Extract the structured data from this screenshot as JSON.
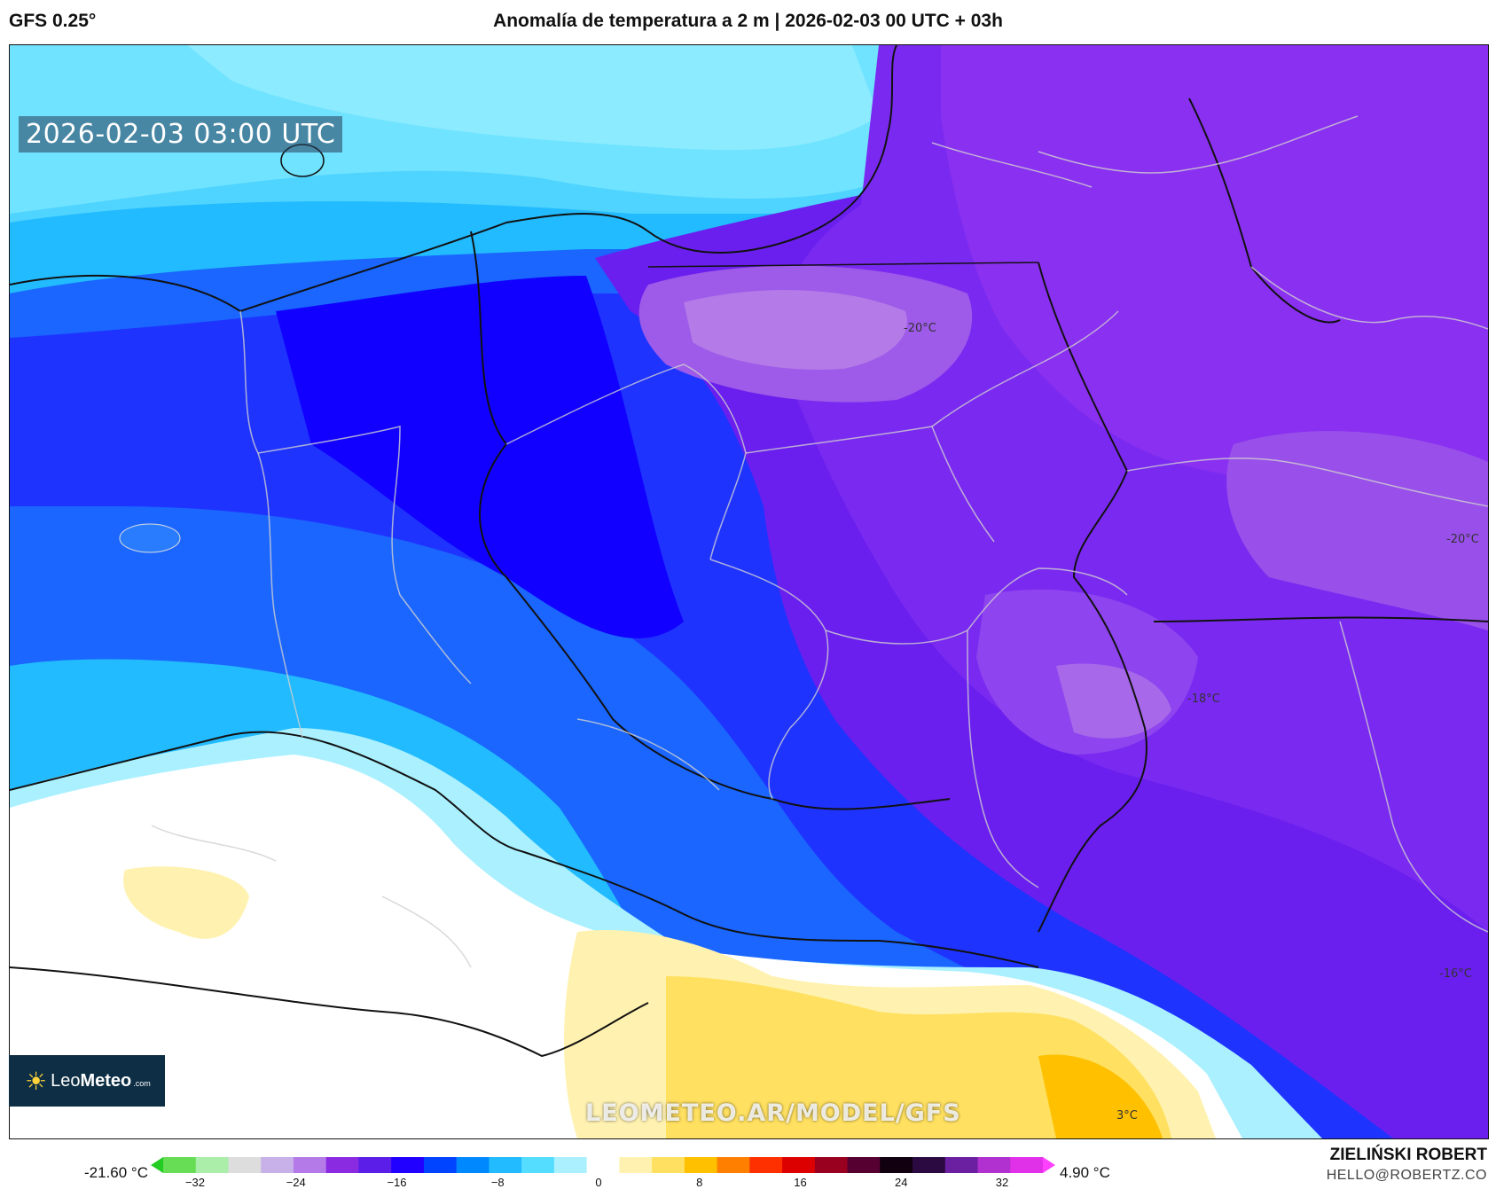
{
  "header": {
    "model": "GFS 0.25°",
    "title": "Anomalía de temperatura a 2 m | 2026-02-03 00 UTC + 03h"
  },
  "map": {
    "timestamp": "2026-02-03 03:00 UTC",
    "watermark": "LEOMETEO.AR/MODEL/GFS",
    "contour_labels": [
      {
        "text": "-20°C"
      },
      {
        "text": "-20°C"
      },
      {
        "text": "-18°C"
      },
      {
        "text": "-16°C"
      },
      {
        "text": "3°C"
      }
    ]
  },
  "logo": {
    "name_light": "Leo",
    "name_bold": "Meteo",
    "suffix": ".com",
    "icon": "sun-icon"
  },
  "colorbar": {
    "min_label": "-21.60 °C",
    "max_label": "4.90 °C",
    "ticks": [
      "−32",
      "−24",
      "−16",
      "−8",
      "0",
      "8",
      "16",
      "24",
      "32"
    ],
    "colors": [
      "#22cc22",
      "#66dd55",
      "#aaeeaa",
      "#dddddd",
      "#c8b0e8",
      "#b37ae8",
      "#8a2be2",
      "#5a1ee8",
      "#2200ff",
      "#0044ff",
      "#0088ff",
      "#22bbff",
      "#55ddff",
      "#aaf0ff",
      "#ffffff",
      "#fff2b0",
      "#ffe060",
      "#ffc000",
      "#ff8000",
      "#ff3000",
      "#dd0000",
      "#990020",
      "#550030",
      "#100010",
      "#2a0a40",
      "#6a20a0",
      "#b030d0",
      "#e030e8",
      "#ff40ff"
    ]
  },
  "credits": {
    "author": "ZIELIŃSKI ROBERT",
    "email": "HELLO@ROBERTZ.CO"
  }
}
